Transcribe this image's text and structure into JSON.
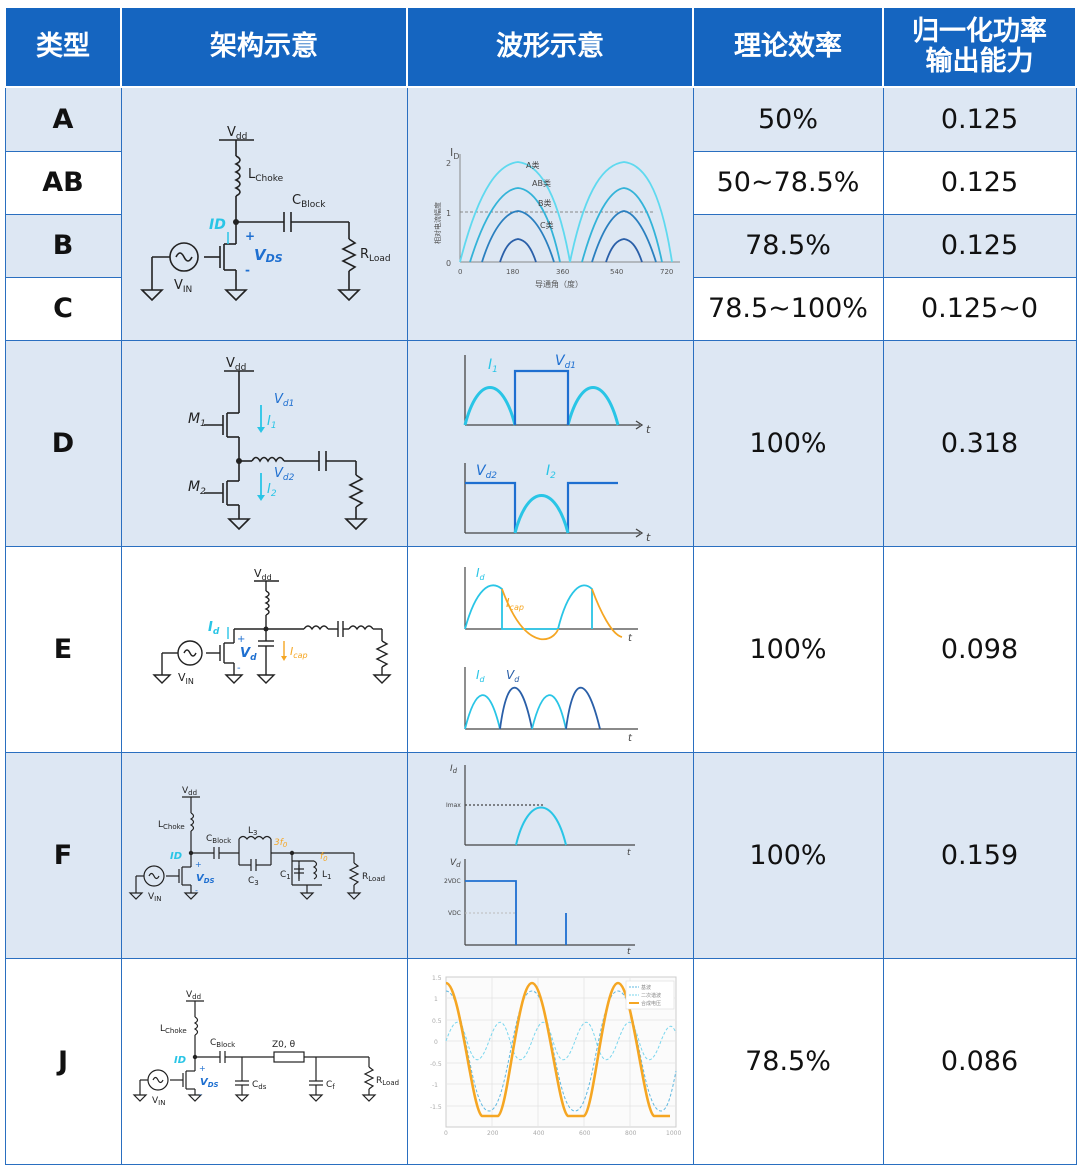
{
  "header": {
    "type": "类型",
    "architecture": "架构示意",
    "waveform": "波形示意",
    "efficiency": "理论效率",
    "power_line1": "归一化功率",
    "power_line2": "输出能力"
  },
  "rows": [
    {
      "type": "A",
      "efficiency": "50%",
      "power": "0.125"
    },
    {
      "type": "AB",
      "efficiency": "50~78.5%",
      "power": "0.125"
    },
    {
      "type": "B",
      "efficiency": "78.5%",
      "power": "0.125"
    },
    {
      "type": "C",
      "efficiency": "78.5~100%",
      "power": "0.125~0"
    },
    {
      "type": "D",
      "efficiency": "100%",
      "power": "0.318"
    },
    {
      "type": "E",
      "efficiency": "100%",
      "power": "0.098"
    },
    {
      "type": "F",
      "efficiency": "100%",
      "power": "0.159"
    },
    {
      "type": "J",
      "efficiency": "78.5%",
      "power": "0.086"
    }
  ],
  "circuits": {
    "vdd": "Vdd",
    "vdd_sub": "dd",
    "v": "V",
    "choke": "Choke",
    "block": "Block",
    "load": "Load",
    "in_sub": "IN",
    "ds_sub": "DS",
    "l_letter": "L",
    "c_letter": "C",
    "r_letter": "R",
    "i_letter": "I",
    "abcd_ds": "VDS",
    "id_label": "ID",
    "plus": "+",
    "minus": "-",
    "m1": "M",
    "m_sub1": "1",
    "m_sub2": "2",
    "vd1": "V",
    "vd1_sub": "d1",
    "vd2_sub": "d2",
    "i1": "I",
    "i_sub1": "1",
    "i_sub2": "2",
    "e_id": "I",
    "e_id_sub": "d",
    "e_vd": "V",
    "e_vd_sub": "d",
    "e_icap_sub": "cap",
    "f_l3": "L",
    "f_l3_sub": "3",
    "f_c3": "C",
    "f_c3_sub": "3",
    "f_3f0": "3f",
    "f_3f0_sub": "0",
    "f_f0": "f",
    "f_f0_sub": "0",
    "f_c1_sub": "1",
    "f_l1_sub": "1",
    "j_z0": "Z0, θ",
    "j_cds_sub": "ds",
    "j_cf_sub": "f"
  },
  "waveforms": {
    "abc": {
      "y_label": "I",
      "y_label_sub": "D",
      "y_axis_title": "相对电流幅度",
      "x_axis_title": "导通角（度）",
      "y_ticks": [
        "0",
        "1",
        "2"
      ],
      "x_ticks": [
        "0",
        "180",
        "360",
        "540",
        "720"
      ],
      "curve_labels": [
        "A类",
        "AB类",
        "B类",
        "C类"
      ]
    },
    "d": {
      "i1": "I",
      "i1_sub": "1",
      "vd1": "V",
      "vd1_sub": "d1",
      "vd2": "V",
      "vd2_sub": "d2",
      "i2": "I",
      "i2_sub": "2",
      "t": "t"
    },
    "e": {
      "id": "I",
      "id_sub": "d",
      "icap": "I",
      "icap_sub": "cap",
      "vd": "V",
      "vd_sub": "d",
      "t": "t"
    },
    "f": {
      "id": "I",
      "id_sub": "d",
      "imax": "Imax",
      "vd": "V",
      "vd_sub": "d",
      "v2dc": "2VDC",
      "vdc": "VDC",
      "t": "t"
    },
    "j": {
      "y_ticks": [
        "1.5",
        "1",
        "0.5",
        "0",
        "-0.5",
        "-1",
        "-1.5"
      ],
      "x_ticks": [
        "0",
        "200",
        "400",
        "600",
        "800",
        "1000"
      ],
      "legend": [
        "基波",
        "二次谐波",
        "合成电压"
      ]
    }
  },
  "colors": {
    "header_bg": "#1565c0",
    "shaded_bg": "#dde7f3",
    "cyan": "#29c5e6",
    "blue": "#1e6fd0",
    "orange": "#f5a623",
    "dark_blue": "#2a5fa8"
  }
}
